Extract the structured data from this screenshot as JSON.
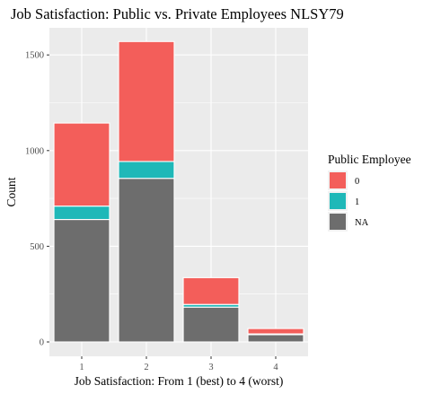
{
  "chart_data": {
    "type": "bar",
    "stacked": true,
    "title": "Job Satisfaction: Public vs. Private Employees NLSY79",
    "xlabel": "Job Satisfaction: From 1 (best) to 4 (worst)",
    "ylabel": "Count",
    "categories": [
      "1",
      "2",
      "3",
      "4"
    ],
    "yticks": [
      0,
      500,
      1000,
      1500
    ],
    "ylim": [
      0,
      1650
    ],
    "grid": true,
    "legend": {
      "title": "Public Employee",
      "position": "right"
    },
    "series": [
      {
        "name": "NA",
        "color": "#6d6d6d",
        "values": [
          640,
          855,
          182,
          38
        ]
      },
      {
        "name": "1",
        "color": "#1fb8b8",
        "values": [
          70,
          88,
          14,
          4
        ]
      },
      {
        "name": "0",
        "color": "#f35e5a",
        "values": [
          434,
          627,
          140,
          28
        ]
      }
    ],
    "legend_order": [
      "0",
      "1",
      "NA"
    ]
  }
}
